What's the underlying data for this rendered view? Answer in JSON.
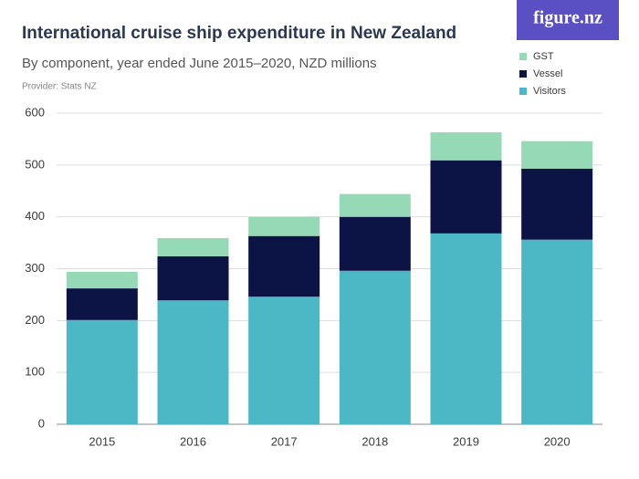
{
  "brand": "figure.nz",
  "chart_data": {
    "type": "stacked_bar",
    "title": "International cruise ship expenditure in New Zealand",
    "subtitle": "By component, year ended June 2015–2020, NZD millions",
    "source": "Provider: Stats NZ",
    "categories": [
      "2015",
      "2016",
      "2017",
      "2018",
      "2019",
      "2020"
    ],
    "series": [
      {
        "name": "Visitors",
        "color": "#4db8c5",
        "values": [
          201,
          239,
          246,
          296,
          368,
          356
        ]
      },
      {
        "name": "Vessel",
        "color": "#0b1445",
        "values": [
          61,
          85,
          117,
          104,
          141,
          137
        ]
      },
      {
        "name": "GST",
        "color": "#95d9b7",
        "values": [
          32,
          35,
          37,
          44,
          54,
          53
        ]
      }
    ],
    "ylim": [
      0,
      600
    ],
    "yticks": [
      0,
      100,
      200,
      300,
      400,
      500,
      600
    ],
    "grid": true,
    "legend": "top-right"
  }
}
